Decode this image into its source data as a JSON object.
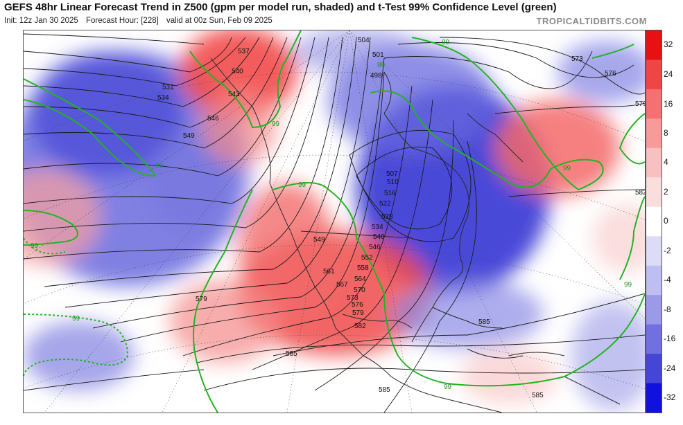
{
  "title": "GEFS 48hr Linear Forecast Trend in Z500 (gpm per model run, shaded) and t-Test 99% Confidence Level (green)",
  "init": "Init: 12z Jan 30 2025",
  "forecast_hour": "Forecast Hour: [228]",
  "valid": "valid at 00z Sun, Feb 09 2025",
  "brand": "TROPICALTIDBITS.COM",
  "colorbar": {
    "ticks": [
      "32",
      "24",
      "16",
      "8",
      "4",
      "2",
      "0",
      "-2",
      "-4",
      "-8",
      "-16",
      "-24",
      "-32"
    ],
    "colors": [
      "#e81010",
      "#f04545",
      "#f57070",
      "#f79a9a",
      "#f8c0c0",
      "#fadede",
      "#ffffff",
      "#dcdcf7",
      "#bebef2",
      "#9a9ae8",
      "#7070e0",
      "#4545d8",
      "#1010e0"
    ]
  },
  "contour_labels": [
    "537",
    "540",
    "543",
    "546",
    "531",
    "534",
    "549",
    "504",
    "501",
    "498",
    "573",
    "576",
    "579",
    "582",
    "507",
    "510",
    "516",
    "522",
    "528",
    "534",
    "540",
    "546",
    "552",
    "558",
    "564",
    "570",
    "576",
    "579",
    "582",
    "585",
    "549",
    "561",
    "567",
    "573",
    "579",
    "585",
    "585",
    "585",
    "99",
    "99",
    "99",
    "99",
    "99",
    "99",
    "99",
    "99",
    "99"
  ]
}
